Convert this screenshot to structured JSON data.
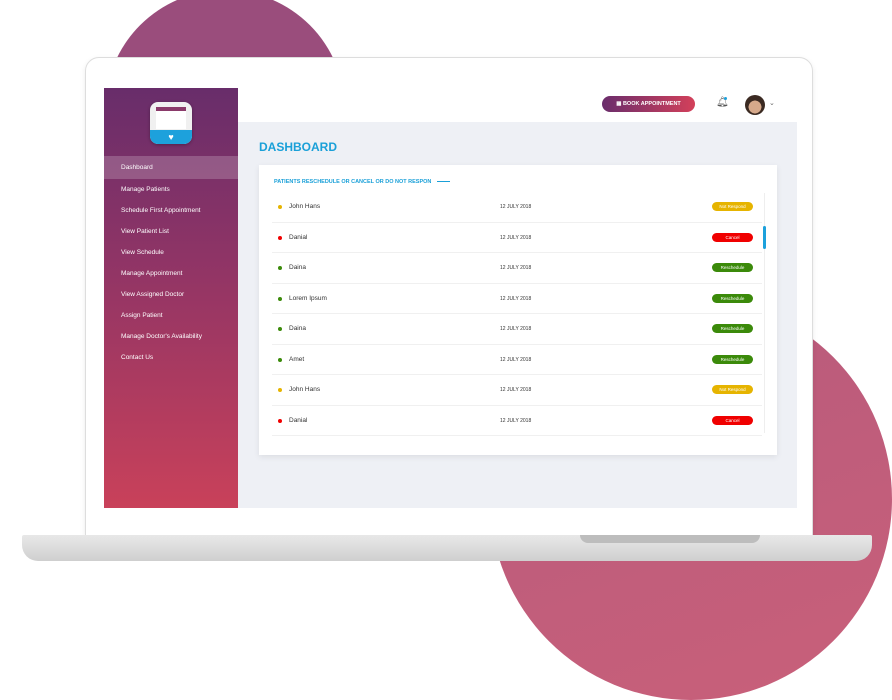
{
  "colors": {
    "accent": "#1aa0d8",
    "not_respond": "#e6b400",
    "cancel": "#f00000",
    "reschedule": "#3b8a0a"
  },
  "header": {
    "book_label": "BOOK APPOINTMENT",
    "book_icon": "calendar-icon",
    "bell_icon": "bell-icon"
  },
  "sidebar": {
    "items": [
      {
        "label": "Dashboard",
        "active": true
      },
      {
        "label": "Manage Patients"
      },
      {
        "label": "Schedule First Appointment"
      },
      {
        "label": "View Patient List"
      },
      {
        "label": "View Schedule"
      },
      {
        "label": "Manage Appointment"
      },
      {
        "label": "View Assigned Doctor"
      },
      {
        "label": "Assign Patient"
      },
      {
        "label": "Manage Doctor's Availability"
      },
      {
        "label": "Contact Us"
      }
    ]
  },
  "main": {
    "title": "DASHBOARD",
    "card_title": "PATIENTS  RESCHEDULE OR CANCEL OR DO NOT RESPON",
    "rows": [
      {
        "name": "John Hans",
        "date": "12 JULY 2018",
        "status": "Not Respond",
        "color": "#e6b400"
      },
      {
        "name": "Danial",
        "date": "12 JULY 2018",
        "status": "Cancel",
        "color": "#f00000"
      },
      {
        "name": "Daina",
        "date": "12 JULY 2018",
        "status": "Reschedule",
        "color": "#3b8a0a"
      },
      {
        "name": "Lorem Ipsum",
        "date": "12 JULY 2018",
        "status": "Reschedule",
        "color": "#3b8a0a"
      },
      {
        "name": "Daina",
        "date": "12 JULY 2018",
        "status": "Reschedule",
        "color": "#3b8a0a"
      },
      {
        "name": "Amet",
        "date": "12 JULY 2018",
        "status": "Reschedule",
        "color": "#3b8a0a"
      },
      {
        "name": "John Hans",
        "date": "12 JULY 2018",
        "status": "Not Respond",
        "color": "#e6b400"
      },
      {
        "name": "Danial",
        "date": "12 JULY 2018",
        "status": "Cancel",
        "color": "#f00000"
      }
    ]
  }
}
